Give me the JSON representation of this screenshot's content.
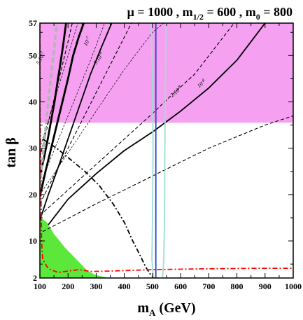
{
  "chart_data": {
    "type": "line",
    "title": "μ = 1000 ,  m_{1/2} = 600 ,  m_0 = 800",
    "title_parts": {
      "mu": "μ = 1000 ,  m",
      "mhalf_sub": "1/2",
      "mhalf_val": " = 600 ,  m",
      "m0_sub": "0",
      "m0_val": " = 800"
    },
    "xlabel": "m_A (GeV)",
    "xlabel_parts": {
      "main": "m",
      "sub": "A",
      "rest": " (GeV)"
    },
    "ylabel": "tan β",
    "xlim": [
      100,
      1000
    ],
    "ylim": [
      2,
      57
    ],
    "x_ticks": [
      100,
      200,
      300,
      400,
      500,
      600,
      700,
      800,
      900,
      1000
    ],
    "y_ticks": [
      2,
      10,
      20,
      30,
      40,
      50,
      57
    ],
    "regions": [
      {
        "name": "upper-excluded",
        "color": "#f5a0f0",
        "points": [
          [
            100,
            35.5
          ],
          [
            1000,
            35.5
          ],
          [
            1000,
            57
          ],
          [
            100,
            57
          ]
        ]
      },
      {
        "name": "lower-left-excluded",
        "color": "#5be83a",
        "points": [
          [
            100,
            2
          ],
          [
            100,
            15.2
          ],
          [
            125,
            14
          ],
          [
            150,
            11.5
          ],
          [
            190,
            8.5
          ],
          [
            230,
            6
          ],
          [
            270,
            3.5
          ],
          [
            300,
            2.6
          ],
          [
            330,
            2.2
          ],
          [
            345,
            2
          ]
        ]
      }
    ],
    "series": [
      {
        "label": "5.10^-7",
        "style": "thick-solid",
        "color": "#000000",
        "points": [
          [
            100,
            24
          ],
          [
            115,
            28
          ],
          [
            128,
            32
          ],
          [
            140,
            36
          ],
          [
            152,
            40
          ],
          [
            162,
            44
          ],
          [
            172,
            48
          ],
          [
            182,
            52
          ],
          [
            193,
            57
          ]
        ]
      },
      {
        "label": "",
        "style": "thick-solid",
        "color": "#000000",
        "points": [
          [
            100,
            19.5
          ],
          [
            120,
            25
          ],
          [
            140,
            30
          ],
          [
            160,
            35
          ],
          [
            180,
            40
          ],
          [
            200,
            45
          ],
          [
            218,
            50
          ],
          [
            238,
            54
          ],
          [
            256,
            57
          ]
        ]
      },
      {
        "label": "10^-7",
        "style": "solid",
        "color": "#000000",
        "points": [
          [
            100,
            14.5
          ],
          [
            130,
            20
          ],
          [
            160,
            25
          ],
          [
            200,
            32
          ],
          [
            240,
            39
          ],
          [
            280,
            46
          ],
          [
            320,
            52
          ],
          [
            355,
            57
          ]
        ]
      },
      {
        "label": "10^-8",
        "style": "solid",
        "color": "#000000",
        "points": [
          [
            130,
            13.5
          ],
          [
            200,
            19
          ],
          [
            300,
            24.5
          ],
          [
            400,
            29.5
          ],
          [
            500,
            33.5
          ],
          [
            600,
            38
          ],
          [
            700,
            43
          ],
          [
            800,
            49
          ],
          [
            900,
            57
          ]
        ]
      },
      {
        "label": "",
        "style": "dashed",
        "color": "#000000",
        "points": [
          [
            100,
            28
          ],
          [
            120,
            33
          ],
          [
            140,
            38
          ],
          [
            160,
            43
          ],
          [
            180,
            48
          ],
          [
            200,
            53
          ],
          [
            215,
            57
          ]
        ]
      },
      {
        "label": "5.10^-8",
        "style": "dashed",
        "color": "#000000",
        "points": [
          [
            100,
            18
          ],
          [
            150,
            24
          ],
          [
            200,
            30
          ],
          [
            250,
            36
          ],
          [
            300,
            42
          ],
          [
            350,
            48
          ],
          [
            400,
            54
          ],
          [
            425,
            57
          ]
        ]
      },
      {
        "label": "2.10^-8",
        "style": "dashed",
        "color": "#000000",
        "points": [
          [
            100,
            15.5
          ],
          [
            200,
            21
          ],
          [
            300,
            26.5
          ],
          [
            400,
            32
          ],
          [
            500,
            37.5
          ],
          [
            560,
            41
          ],
          [
            650,
            46
          ],
          [
            790,
            57
          ]
        ]
      },
      {
        "label": "",
        "style": "dashed",
        "color": "#000000",
        "points": [
          [
            110,
            12
          ],
          [
            300,
            18
          ],
          [
            500,
            24
          ],
          [
            700,
            30
          ],
          [
            900,
            35
          ],
          [
            1000,
            37
          ]
        ]
      },
      {
        "label": "",
        "style": "thin-dashed",
        "color": "#000000",
        "points": [
          [
            100,
            30
          ],
          [
            140,
            38
          ],
          [
            180,
            46
          ],
          [
            220,
            54
          ],
          [
            235,
            57
          ]
        ]
      },
      {
        "label": "",
        "style": "thin-dashed",
        "color": "#000000",
        "points": [
          [
            100,
            22
          ],
          [
            160,
            31
          ],
          [
            220,
            40
          ],
          [
            280,
            49
          ],
          [
            330,
            57
          ]
        ]
      },
      {
        "label": "",
        "style": "thin-dashed",
        "color": "#000000",
        "points": [
          [
            100,
            20
          ],
          [
            200,
            29
          ],
          [
            300,
            38
          ],
          [
            400,
            47
          ],
          [
            500,
            55
          ],
          [
            540,
            57
          ]
        ]
      },
      {
        "label": "",
        "style": "dash-dot",
        "color": "#000000",
        "points": [
          [
            110,
            32
          ],
          [
            160,
            30
          ],
          [
            210,
            27.5
          ],
          [
            260,
            25
          ],
          [
            310,
            22
          ],
          [
            360,
            18
          ],
          [
            400,
            14
          ],
          [
            430,
            10
          ],
          [
            455,
            7
          ],
          [
            475,
            4.5
          ],
          [
            490,
            3
          ],
          [
            505,
            2
          ]
        ]
      },
      {
        "label": "",
        "style": "dash-dot",
        "color": "#ff0000",
        "points": [
          [
            100,
            57
          ],
          [
            100,
            40
          ],
          [
            104,
            20
          ],
          [
            106,
            10
          ],
          [
            110,
            6
          ],
          [
            130,
            4
          ],
          [
            165,
            3.2
          ],
          [
            200,
            3.5
          ],
          [
            240,
            3.8
          ],
          [
            280,
            3.4
          ],
          [
            350,
            3.5
          ],
          [
            500,
            3.8
          ],
          [
            700,
            4
          ],
          [
            900,
            4.1
          ],
          [
            1000,
            4.1
          ]
        ]
      },
      {
        "label": "",
        "style": "thick-dashed",
        "color": "#b4b4b4",
        "points": [
          [
            100,
            22
          ],
          [
            110,
            28
          ],
          [
            120,
            34
          ],
          [
            130,
            40
          ],
          [
            140,
            46
          ],
          [
            150,
            51
          ],
          [
            160,
            57
          ]
        ]
      },
      {
        "label": "",
        "style": "solid",
        "color": "#9ee0d0",
        "points": [
          [
            495,
            57
          ],
          [
            500,
            45
          ],
          [
            502,
            30
          ],
          [
            500,
            15
          ],
          [
            498,
            6
          ],
          [
            503,
            2
          ]
        ]
      },
      {
        "label": "",
        "style": "solid",
        "color": "#9ee0d0",
        "points": [
          [
            548,
            57
          ],
          [
            546,
            45
          ],
          [
            544,
            30
          ],
          [
            543,
            15
          ],
          [
            540,
            6
          ],
          [
            536,
            2
          ]
        ]
      },
      {
        "label": "",
        "style": "solid",
        "color": "#3040d0",
        "points": [
          [
            512,
            2
          ],
          [
            512,
            57
          ]
        ]
      }
    ]
  }
}
